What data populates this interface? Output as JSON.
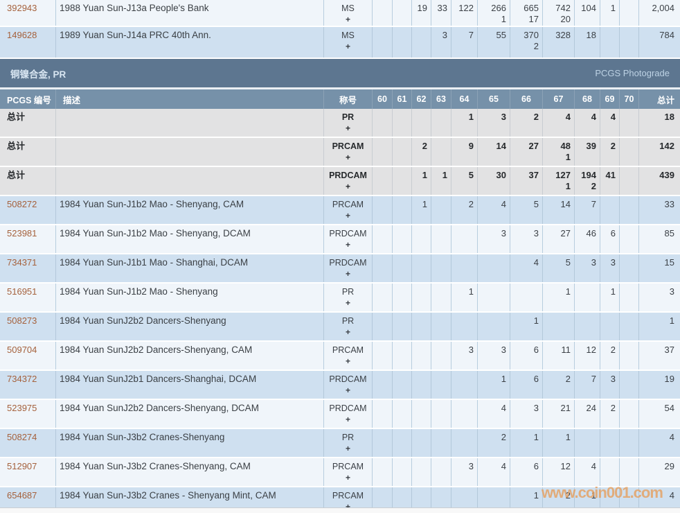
{
  "plus_sign": "+",
  "watermark": "www.coin001.com",
  "section": {
    "title": "铜镍合金, PR",
    "right_label": "PCGS Photograde"
  },
  "header": {
    "pcgs": "PCGS 编号",
    "desc": "描述",
    "grade": "称号",
    "grades": [
      "60",
      "61",
      "62",
      "63",
      "64",
      "65",
      "66",
      "67",
      "68",
      "69",
      "70"
    ],
    "total": "总计"
  },
  "top_rows": [
    {
      "pcgs": "392943",
      "desc": "1988 Yuan Sun-J13a People's Bank",
      "grade": "MS",
      "shade": "pale",
      "values": [
        "",
        "",
        "19",
        "33",
        "122",
        "266",
        "665",
        "742",
        "104",
        "1",
        ""
      ],
      "subs": [
        "",
        "",
        "",
        "",
        "",
        "1",
        "17",
        "20",
        "",
        "",
        ""
      ],
      "total": "2,004"
    },
    {
      "pcgs": "149628",
      "desc": "1989 Yuan Sun-J14a PRC 40th Ann.",
      "grade": "MS",
      "shade": "blue",
      "values": [
        "",
        "",
        "",
        "3",
        "7",
        "55",
        "370",
        "328",
        "18",
        "",
        ""
      ],
      "subs": [
        "",
        "",
        "",
        "",
        "",
        "",
        "2",
        "",
        "",
        "",
        ""
      ],
      "total": "784"
    }
  ],
  "total_rows": [
    {
      "label": "总计",
      "desc": "",
      "grade": "PR",
      "shade": "gray",
      "values": [
        "",
        "",
        "",
        "",
        "1",
        "3",
        "2",
        "4",
        "4",
        "4",
        ""
      ],
      "subs": [
        "",
        "",
        "",
        "",
        "",
        "",
        "",
        "",
        "",
        "",
        ""
      ],
      "total": "18"
    },
    {
      "label": "总计",
      "desc": "",
      "grade": "PRCAM",
      "shade": "gray",
      "values": [
        "",
        "",
        "2",
        "",
        "9",
        "14",
        "27",
        "48",
        "39",
        "2",
        ""
      ],
      "subs": [
        "",
        "",
        "",
        "",
        "",
        "",
        "",
        "1",
        "",
        "",
        ""
      ],
      "total": "142"
    },
    {
      "label": "总计",
      "desc": "",
      "grade": "PRDCAM",
      "shade": "gray",
      "values": [
        "",
        "",
        "1",
        "1",
        "5",
        "30",
        "37",
        "127",
        "194",
        "41",
        ""
      ],
      "subs": [
        "",
        "",
        "",
        "",
        "",
        "",
        "",
        "1",
        "2",
        "",
        ""
      ],
      "total": "439"
    }
  ],
  "data_rows": [
    {
      "pcgs": "508272",
      "desc": "1984 Yuan Sun-J1b2 Mao - Shenyang, CAM",
      "grade": "PRCAM",
      "shade": "blue",
      "values": [
        "",
        "",
        "1",
        "",
        "2",
        "4",
        "5",
        "14",
        "7",
        "",
        ""
      ],
      "subs": [
        "",
        "",
        "",
        "",
        "",
        "",
        "",
        "",
        "",
        "",
        ""
      ],
      "total": "33"
    },
    {
      "pcgs": "523981",
      "desc": "1984 Yuan Sun-J1b2 Mao - Shenyang, DCAM",
      "grade": "PRDCAM",
      "shade": "pale",
      "values": [
        "",
        "",
        "",
        "",
        "",
        "3",
        "3",
        "27",
        "46",
        "6",
        ""
      ],
      "subs": [
        "",
        "",
        "",
        "",
        "",
        "",
        "",
        "",
        "",
        "",
        ""
      ],
      "total": "85"
    },
    {
      "pcgs": "734371",
      "desc": "1984 Yuan Sun-J1b1 Mao - Shanghai, DCAM",
      "grade": "PRDCAM",
      "shade": "blue",
      "values": [
        "",
        "",
        "",
        "",
        "",
        "",
        "4",
        "5",
        "3",
        "3",
        ""
      ],
      "subs": [
        "",
        "",
        "",
        "",
        "",
        "",
        "",
        "",
        "",
        "",
        ""
      ],
      "total": "15"
    },
    {
      "pcgs": "516951",
      "desc": "1984 Yuan Sun-J1b2 Mao - Shenyang",
      "grade": "PR",
      "shade": "pale",
      "values": [
        "",
        "",
        "",
        "",
        "1",
        "",
        "",
        "1",
        "",
        "1",
        ""
      ],
      "subs": [
        "",
        "",
        "",
        "",
        "",
        "",
        "",
        "",
        "",
        "",
        ""
      ],
      "total": "3"
    },
    {
      "pcgs": "508273",
      "desc": "1984 Yuan SunJ2b2 Dancers-Shenyang",
      "grade": "PR",
      "shade": "blue",
      "values": [
        "",
        "",
        "",
        "",
        "",
        "",
        "1",
        "",
        "",
        "",
        ""
      ],
      "subs": [
        "",
        "",
        "",
        "",
        "",
        "",
        "",
        "",
        "",
        "",
        ""
      ],
      "total": "1"
    },
    {
      "pcgs": "509704",
      "desc": "1984 Yuan SunJ2b2 Dancers-Shenyang, CAM",
      "grade": "PRCAM",
      "shade": "pale",
      "values": [
        "",
        "",
        "",
        "",
        "3",
        "3",
        "6",
        "11",
        "12",
        "2",
        ""
      ],
      "subs": [
        "",
        "",
        "",
        "",
        "",
        "",
        "",
        "",
        "",
        "",
        ""
      ],
      "total": "37"
    },
    {
      "pcgs": "734372",
      "desc": "1984 Yuan SunJ2b1 Dancers-Shanghai, DCAM",
      "grade": "PRDCAM",
      "shade": "blue",
      "values": [
        "",
        "",
        "",
        "",
        "",
        "1",
        "6",
        "2",
        "7",
        "3",
        ""
      ],
      "subs": [
        "",
        "",
        "",
        "",
        "",
        "",
        "",
        "",
        "",
        "",
        ""
      ],
      "total": "19"
    },
    {
      "pcgs": "523975",
      "desc": "1984 Yuan SunJ2b2 Dancers-Shenyang, DCAM",
      "grade": "PRDCAM",
      "shade": "pale",
      "values": [
        "",
        "",
        "",
        "",
        "",
        "4",
        "3",
        "21",
        "24",
        "2",
        ""
      ],
      "subs": [
        "",
        "",
        "",
        "",
        "",
        "",
        "",
        "",
        "",
        "",
        ""
      ],
      "total": "54"
    },
    {
      "pcgs": "508274",
      "desc": "1984 Yuan Sun-J3b2 Cranes-Shenyang",
      "grade": "PR",
      "shade": "blue",
      "values": [
        "",
        "",
        "",
        "",
        "",
        "2",
        "1",
        "1",
        "",
        "",
        ""
      ],
      "subs": [
        "",
        "",
        "",
        "",
        "",
        "",
        "",
        "",
        "",
        "",
        ""
      ],
      "total": "4"
    },
    {
      "pcgs": "512907",
      "desc": "1984 Yuan Sun-J3b2 Cranes-Shenyang, CAM",
      "grade": "PRCAM",
      "shade": "pale",
      "values": [
        "",
        "",
        "",
        "",
        "3",
        "4",
        "6",
        "12",
        "4",
        "",
        ""
      ],
      "subs": [
        "",
        "",
        "",
        "",
        "",
        "",
        "",
        "",
        "",
        "",
        ""
      ],
      "total": "29"
    },
    {
      "pcgs": "654687",
      "desc": "1984 Yuan Sun-J3b2 Cranes - Shenyang Mint, CAM",
      "grade": "PRCAM",
      "shade": "blue",
      "values": [
        "",
        "",
        "",
        "",
        "",
        "",
        "1",
        "2",
        "1",
        "",
        ""
      ],
      "subs": [
        "",
        "",
        "",
        "",
        "",
        "",
        "",
        "",
        "",
        "",
        ""
      ],
      "total": "4"
    }
  ],
  "colors": {
    "section_bar_bg": "#5d7690",
    "column_header_bg": "#7691a9",
    "row_blue_bg": "#cfe0f0",
    "row_pale_bg": "#f0f5fa",
    "row_total_bg": "#e2e2e3",
    "link": "#a5613c",
    "watermark": "#e4a060"
  }
}
